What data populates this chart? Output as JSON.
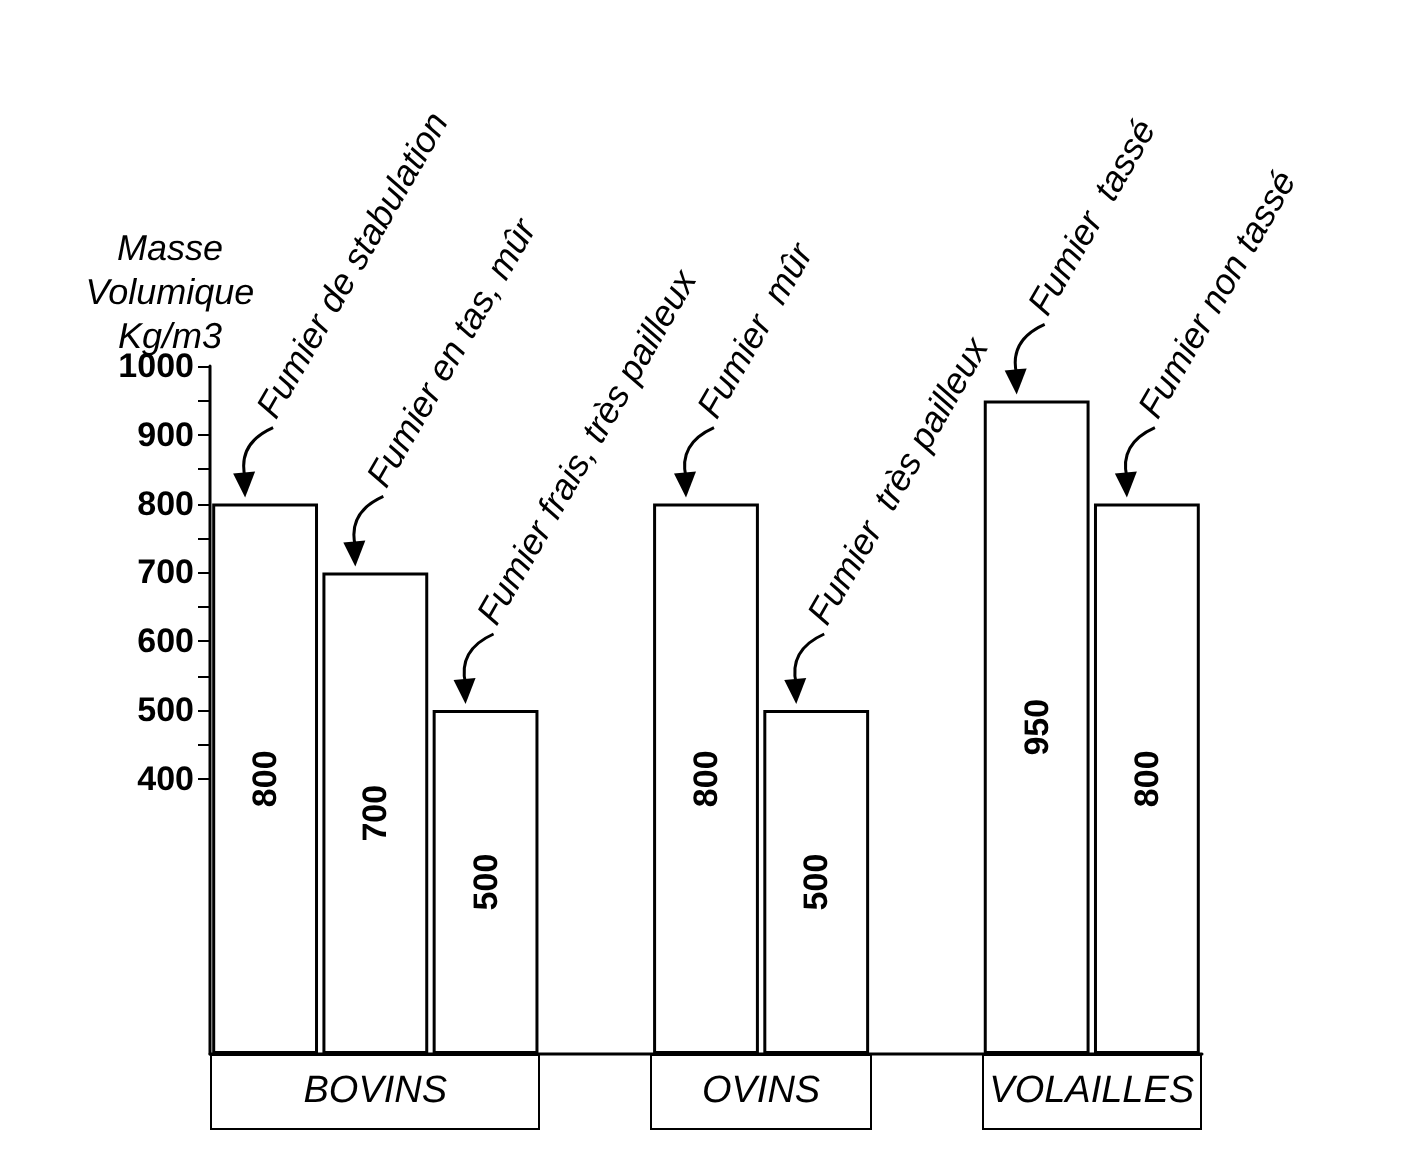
{
  "chart_data": {
    "type": "bar",
    "ylabel": "Masse Volumique Kg/m3",
    "categories": [
      null,
      null,
      null,
      null,
      null,
      null,
      null,
      null,
      null
    ],
    "values": [
      800,
      700,
      500,
      null,
      800,
      500,
      null,
      950,
      800
    ],
    "color": "#ffffff",
    "data_labels": true,
    "annotations": [
      "Fumier de stabulation",
      "Fumier en tas, mûr",
      "Fumier frais, très pailleux",
      "Fumier  mûr",
      "Fumier  très pailleux",
      "Fumier  tassé",
      "Fumier non tassé",
      "BOVINS",
      "OVINS",
      "VOLAILLES"
    ],
    "ylim": [
      0,
      1000
    ],
    "yticks": [
      400,
      {
        "value": 450,
        "label": null
      },
      500,
      {
        "value": 550,
        "label": null
      },
      600,
      {
        "value": 650,
        "label": null
      },
      700,
      {
        "value": 750,
        "label": null
      },
      800,
      {
        "value": 850,
        "label": null
      },
      900,
      {
        "value": 950,
        "label": null
      },
      1000
    ],
    "grid": false
  }
}
